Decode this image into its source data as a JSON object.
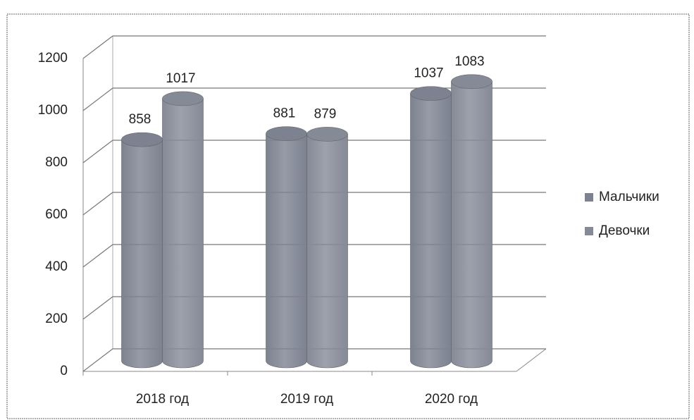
{
  "chart_data": {
    "type": "bar3d",
    "categories": [
      "2018 год",
      "2019 год",
      "2020 год"
    ],
    "series": [
      {
        "name": "Мальчики",
        "color": "#7c8290",
        "values": [
          858,
          881,
          1037
        ]
      },
      {
        "name": "Девочки",
        "color": "#858a97",
        "values": [
          1017,
          879,
          1083
        ]
      }
    ],
    "ylim": [
      0,
      1200
    ],
    "yticks": [
      0,
      200,
      400,
      600,
      800,
      1000,
      1200
    ],
    "grid": true,
    "legend": "right"
  }
}
